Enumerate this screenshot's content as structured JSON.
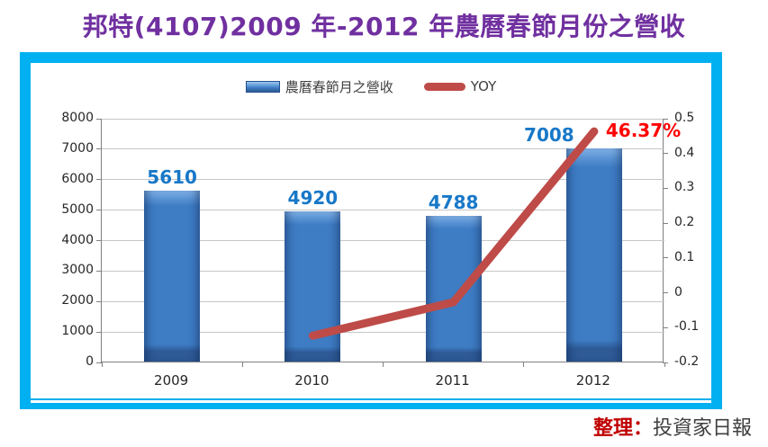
{
  "title": {
    "text": "邦特(4107)2009 年-2012 年農曆春節月份之營收"
  },
  "legend": {
    "items": [
      {
        "label": "農曆春節月之營收",
        "swatch": "bar-swatch"
      },
      {
        "label": "YOY",
        "swatch": "line-swatch"
      }
    ]
  },
  "footer": {
    "prefix": "整理：",
    "source": "投資家日報"
  },
  "colors": {
    "title": "#7030A0",
    "frame": "#00B0F0",
    "bar_fill": "#3E7CC4",
    "bar_dark": "#2E5A96",
    "bar_light": "#86B6EA",
    "line": "#BE4B48",
    "bar_value_label": "#1878C8",
    "yoy_value_label": "#FF0000",
    "footer_prefix": "#C00000",
    "gridline": "#C6C6C6",
    "axis": "#808080"
  },
  "chart_data": {
    "type": "bar+line",
    "categories": [
      "2009",
      "2010",
      "2011",
      "2012"
    ],
    "series": [
      {
        "name": "農曆春節月之營收",
        "type": "bar",
        "axis": "left",
        "values": [
          5610,
          4920,
          4788,
          7008
        ],
        "data_labels": [
          "5610",
          "4920",
          "4788",
          "7008"
        ],
        "label_dx": [
          0,
          0,
          0,
          -50
        ]
      },
      {
        "name": "YOY",
        "type": "line",
        "axis": "right",
        "values": [
          null,
          -0.123,
          -0.027,
          0.4637
        ],
        "data_labels": [
          null,
          null,
          null,
          "46.37%"
        ]
      }
    ],
    "left_axis": {
      "min": 0,
      "max": 8000,
      "step": 1000,
      "tick_labels": [
        "8000",
        "7000",
        "6000",
        "5000",
        "4000",
        "3000",
        "2000",
        "1000",
        "0"
      ]
    },
    "right_axis": {
      "min": -0.2,
      "max": 0.5,
      "step": 0.1,
      "tick_labels": [
        "0.5",
        "0.4",
        "0.3",
        "0.2",
        "0.1",
        "0",
        "-0.1",
        "-0.2"
      ]
    },
    "grid": true,
    "legend_position": "top"
  }
}
